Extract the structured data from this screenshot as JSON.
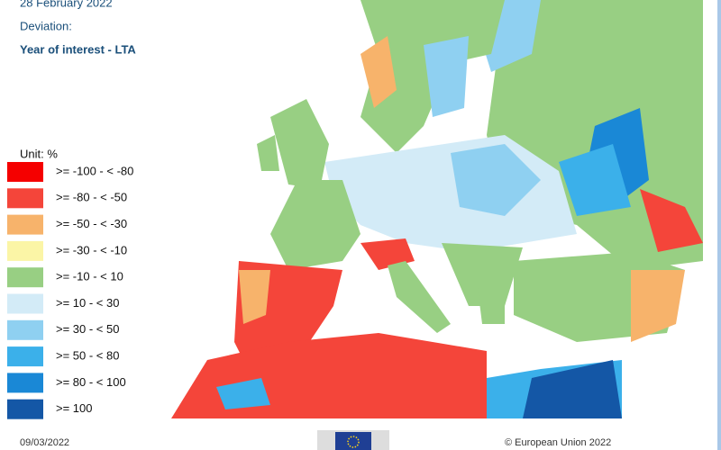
{
  "header": {
    "period": "28 February 2022",
    "subtitle": "Deviation:",
    "measure": "Year of interest - LTA"
  },
  "legend": {
    "unit": "Unit: %",
    "items": [
      {
        "label": ">= -100 - < -80",
        "color": "#f50000"
      },
      {
        "label": ">= -80 - < -50",
        "color": "#f4453a"
      },
      {
        "label": ">= -50 - < -30",
        "color": "#f7b36b"
      },
      {
        "label": ">= -30 - < -10",
        "color": "#fbf5a6"
      },
      {
        "label": ">= -10 - < 10",
        "color": "#98cf83"
      },
      {
        "label": ">= 10 - < 30",
        "color": "#d3ebf7"
      },
      {
        "label": ">= 30 - < 50",
        "color": "#8fd0f1"
      },
      {
        "label": ">= 50 - < 80",
        "color": "#3bb0ea"
      },
      {
        "label": ">= 80 - < 100",
        "color": "#1a88d6"
      },
      {
        "label": ">= 100",
        "color": "#1457a6"
      }
    ]
  },
  "footer": {
    "date": "09/03/2022",
    "copyright": "© European Union 2022"
  }
}
